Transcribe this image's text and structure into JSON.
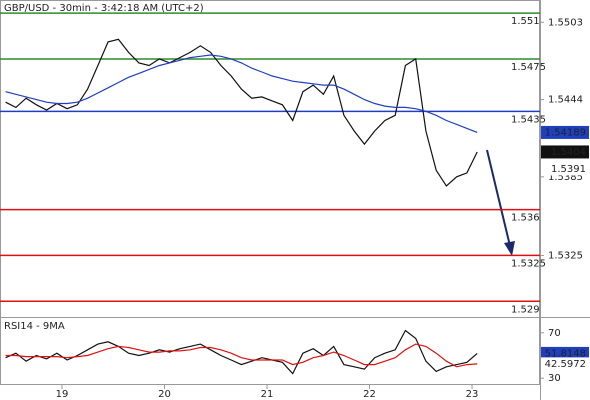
{
  "chart_data": [
    {
      "type": "line",
      "title": "GBP/USD - 30min - 3:42:18 AM (UTC+2)",
      "xlim": [
        18.395,
        23.663
      ],
      "ylim": [
        1.5278,
        1.552
      ],
      "yticks": [
        1.5503,
        1.5444,
        1.5385,
        1.5325
      ],
      "x": [
        18.45,
        18.55,
        18.65,
        18.75,
        18.85,
        18.95,
        19.05,
        19.15,
        19.25,
        19.35,
        19.45,
        19.55,
        19.65,
        19.75,
        19.85,
        19.95,
        20.05,
        20.15,
        20.25,
        20.35,
        20.45,
        20.55,
        20.65,
        20.75,
        20.85,
        20.95,
        21.05,
        21.15,
        21.25,
        21.35,
        21.45,
        21.55,
        21.65,
        21.75,
        21.85,
        21.95,
        22.05,
        22.15,
        22.25,
        22.35,
        22.45,
        22.55,
        22.65,
        22.75,
        22.85,
        22.95,
        23.05
      ],
      "series": [
        {
          "color": "#111111",
          "label_bg": "#111111",
          "values": [
            1.5442,
            1.5438,
            1.5445,
            1.544,
            1.5436,
            1.5441,
            1.5437,
            1.544,
            1.5452,
            1.547,
            1.5488,
            1.549,
            1.548,
            1.5472,
            1.547,
            1.5475,
            1.5472,
            1.5476,
            1.548,
            1.5485,
            1.548,
            1.547,
            1.5462,
            1.5452,
            1.5445,
            1.5446,
            1.5443,
            1.544,
            1.5428,
            1.545,
            1.5455,
            1.5448,
            1.5462,
            1.5432,
            1.542,
            1.541,
            1.542,
            1.5428,
            1.5432,
            1.547,
            1.5475,
            1.542,
            1.539,
            1.5378,
            1.5385,
            1.5388,
            1.5404
          ]
        },
        {
          "color": "#1f3fbf",
          "label_bg": "#1f3fbf",
          "values": [
            1.545,
            1.5448,
            1.5446,
            1.5444,
            1.5442,
            1.5441,
            1.5441,
            1.5442,
            1.5445,
            1.5449,
            1.5453,
            1.5457,
            1.5461,
            1.5464,
            1.5467,
            1.547,
            1.5472,
            1.5474,
            1.5476,
            1.5477,
            1.5478,
            1.5477,
            1.5475,
            1.5472,
            1.5468,
            1.5465,
            1.5462,
            1.546,
            1.5458,
            1.5457,
            1.5456,
            1.5455,
            1.5455,
            1.5452,
            1.5448,
            1.5444,
            1.5441,
            1.5439,
            1.5438,
            1.5438,
            1.5437,
            1.5435,
            1.5432,
            1.5428,
            1.5425,
            1.5422,
            1.54189
          ]
        }
      ],
      "levels": [
        {
          "value": 1.551,
          "color": "#2e8b2e"
        },
        {
          "value": 1.5475,
          "color": "#2e8b2e"
        },
        {
          "value": 1.5435,
          "color": "#1f3fbf"
        },
        {
          "value": 1.536,
          "color": "#e01010"
        },
        {
          "value": 1.5325,
          "color": "#e01010"
        },
        {
          "value": 1.529,
          "color": "#e01010"
        }
      ],
      "markers": [
        {
          "value": 1.5391,
          "color": "#e01010"
        }
      ]
    },
    {
      "type": "line",
      "title": "RSI14 - 9MA",
      "xlim": [
        18.395,
        23.663
      ],
      "ylim": [
        24,
        83
      ],
      "xticks": [
        19,
        20,
        21,
        22,
        23
      ],
      "yticks": [
        70,
        30
      ],
      "x": [
        18.45,
        18.55,
        18.65,
        18.75,
        18.85,
        18.95,
        19.05,
        19.15,
        19.25,
        19.35,
        19.45,
        19.55,
        19.65,
        19.75,
        19.85,
        19.95,
        20.05,
        20.15,
        20.25,
        20.35,
        20.45,
        20.55,
        20.65,
        20.75,
        20.85,
        20.95,
        21.05,
        21.15,
        21.25,
        21.35,
        21.45,
        21.55,
        21.65,
        21.75,
        21.85,
        21.95,
        22.05,
        22.15,
        22.25,
        22.35,
        22.45,
        22.55,
        22.65,
        22.75,
        22.85,
        22.95,
        23.05
      ],
      "series": [
        {
          "color": "#111111",
          "label_bg": "#1f3fbf",
          "values": [
            48,
            52,
            45,
            50,
            47,
            52,
            46,
            50,
            55,
            60,
            62,
            58,
            52,
            50,
            52,
            55,
            53,
            56,
            58,
            60,
            55,
            50,
            46,
            42,
            45,
            48,
            46,
            44,
            34,
            52,
            56,
            50,
            58,
            42,
            40,
            38,
            48,
            52,
            55,
            72,
            65,
            45,
            36,
            40,
            42,
            44,
            51.8148
          ]
        },
        {
          "color": "#e01010",
          "label_bg": "#ffffff",
          "values": [
            50,
            50,
            49,
            49,
            49,
            49,
            48,
            49,
            50,
            53,
            56,
            58,
            57,
            55,
            53,
            53,
            54,
            54,
            55,
            57,
            57,
            55,
            52,
            48,
            46,
            46,
            46,
            46,
            42,
            44,
            48,
            50,
            53,
            50,
            46,
            42,
            42,
            45,
            48,
            55,
            60,
            58,
            52,
            45,
            40,
            42,
            42.5972
          ]
        }
      ]
    }
  ]
}
